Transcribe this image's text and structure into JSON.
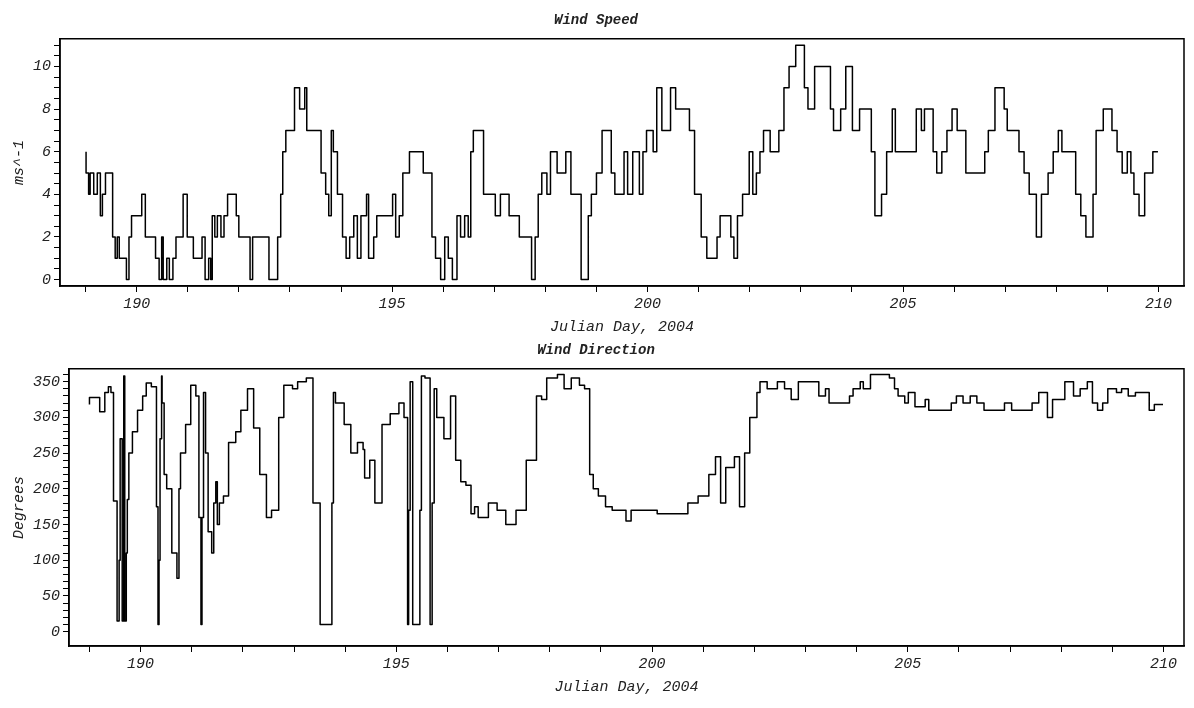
{
  "chart_data": [
    {
      "type": "step",
      "title": "Wind Speed",
      "xlabel": "Julian Day, 2004",
      "ylabel": "ms^-1",
      "xlim": [
        188.5,
        210.5
      ],
      "ylim": [
        -0.3,
        11.3
      ],
      "xticks": [
        {
          "value": 189,
          "label": null
        },
        190,
        {
          "value": 191,
          "label": null
        },
        {
          "value": 192,
          "label": null
        },
        {
          "value": 193,
          "label": null
        },
        {
          "value": 194,
          "label": null
        },
        195,
        {
          "value": 196,
          "label": null
        },
        {
          "value": 197,
          "label": null
        },
        {
          "value": 198,
          "label": null
        },
        {
          "value": 199,
          "label": null
        },
        200,
        {
          "value": 201,
          "label": null
        },
        {
          "value": 202,
          "label": null
        },
        {
          "value": 203,
          "label": null
        },
        {
          "value": 204,
          "label": null
        },
        205,
        {
          "value": 206,
          "label": null
        },
        {
          "value": 207,
          "label": null
        },
        {
          "value": 208,
          "label": null
        },
        {
          "value": 209,
          "label": null
        },
        210
      ],
      "yticks": [
        0,
        {
          "value": 0.5,
          "label": null
        },
        {
          "value": 1,
          "label": null
        },
        {
          "value": 1.5,
          "label": null
        },
        2,
        {
          "value": 2.5,
          "label": null
        },
        {
          "value": 3,
          "label": null
        },
        {
          "value": 3.5,
          "label": null
        },
        4,
        {
          "value": 4.5,
          "label": null
        },
        {
          "value": 5,
          "label": null
        },
        {
          "value": 5.5,
          "label": null
        },
        6,
        {
          "value": 6.5,
          "label": null
        },
        {
          "value": 7,
          "label": null
        },
        {
          "value": 7.5,
          "label": null
        },
        8,
        {
          "value": 8.5,
          "label": null
        },
        {
          "value": 9,
          "label": null
        },
        {
          "value": 9.5,
          "label": null
        },
        10,
        {
          "value": 10.5,
          "label": null
        },
        {
          "value": 11,
          "label": null
        }
      ],
      "marker": "none",
      "series": [
        {
          "color": "#000000",
          "x": [
            189.01,
            189.06,
            189.09,
            189.16,
            189.23,
            189.29,
            189.33,
            189.39,
            189.53,
            189.58,
            189.62,
            189.66,
            189.8,
            189.85,
            189.9,
            190.1,
            190.17,
            190.37,
            190.44,
            190.49,
            190.52,
            190.59,
            190.64,
            190.71,
            190.77,
            190.91,
            190.99,
            191.11,
            191.28,
            191.34,
            191.41,
            191.45,
            191.48,
            191.53,
            191.58,
            191.65,
            191.71,
            191.78,
            191.95,
            192.0,
            192.22,
            192.27,
            192.59,
            192.76,
            192.82,
            192.86,
            192.92,
            193.09,
            193.19,
            193.29,
            193.33,
            193.61,
            193.7,
            193.76,
            193.81,
            193.85,
            193.93,
            194.03,
            194.1,
            194.17,
            194.25,
            194.32,
            194.39,
            194.5,
            194.54,
            194.64,
            194.7,
            195.01,
            195.07,
            195.14,
            195.21,
            195.34,
            195.61,
            195.78,
            195.85,
            195.95,
            196.03,
            196.1,
            196.18,
            196.27,
            196.34,
            196.42,
            196.49,
            196.54,
            196.59,
            196.79,
            197.02,
            197.12,
            197.29,
            197.49,
            197.73,
            197.8,
            197.86,
            197.93,
            198.03,
            198.1,
            198.23,
            198.4,
            198.5,
            198.7,
            198.84,
            198.9,
            199.0,
            199.11,
            199.29,
            199.36,
            199.54,
            199.61,
            199.71,
            199.84,
            199.91,
            199.98,
            200.11,
            200.18,
            200.28,
            200.45,
            200.55,
            200.82,
            200.92,
            201.05,
            201.16,
            201.36,
            201.42,
            201.63,
            201.69,
            201.76,
            201.86,
            201.99,
            202.06,
            202.13,
            202.2,
            202.27,
            202.4,
            202.57,
            202.67,
            202.77,
            202.9,
            203.07,
            203.14,
            203.27,
            203.58,
            203.64,
            203.78,
            203.88,
            204.01,
            204.15,
            204.38,
            204.45,
            204.58,
            204.68,
            204.79,
            204.85,
            205.26,
            205.36,
            205.42,
            205.59,
            205.66,
            205.76,
            205.86,
            205.96,
            206.06,
            206.23,
            206.6,
            206.67,
            206.8,
            206.98,
            207.04,
            207.27,
            207.37,
            207.47,
            207.61,
            207.71,
            207.84,
            207.94,
            208.04,
            208.11,
            208.38,
            208.48,
            208.58,
            208.72,
            208.78,
            208.92,
            209.09,
            209.19,
            209.29,
            209.39,
            209.46,
            209.52,
            209.62,
            209.73,
            209.89,
            209.99
          ],
          "values": [
            6,
            5,
            4,
            5,
            4,
            5,
            3,
            4,
            5,
            2,
            1,
            2,
            1,
            0,
            2,
            3,
            4,
            2,
            1,
            0,
            2,
            0,
            1,
            0,
            1,
            2,
            4,
            2,
            1,
            2,
            0,
            1,
            0,
            3,
            2,
            3,
            2,
            3,
            4,
            3,
            2,
            0,
            2,
            0,
            2,
            4,
            6,
            7,
            9,
            8,
            9,
            7,
            5,
            4,
            3,
            7,
            6,
            4,
            2,
            1,
            2,
            3,
            1,
            3,
            4,
            1,
            2,
            3,
            4,
            2,
            3,
            5,
            6,
            5,
            2,
            1,
            0,
            2,
            1,
            0,
            3,
            2,
            3,
            2,
            6,
            7,
            4,
            3,
            4,
            3,
            2,
            0,
            2,
            4,
            5,
            4,
            6,
            5,
            6,
            4,
            0,
            3,
            4,
            5,
            7,
            5,
            4,
            6,
            4,
            6,
            4,
            6,
            7,
            6,
            9,
            7,
            9,
            8,
            7,
            4,
            2,
            1,
            2,
            3,
            2,
            1,
            3,
            4,
            6,
            4,
            5,
            6,
            7,
            6,
            7,
            9,
            10,
            11,
            9,
            8,
            10,
            8,
            7,
            8,
            10,
            7,
            8,
            6,
            3,
            4,
            6,
            8,
            6,
            8,
            7,
            8,
            6,
            5,
            6,
            7,
            8,
            7,
            5,
            6,
            7,
            9,
            8,
            7,
            6,
            5,
            4,
            2,
            4,
            5,
            6,
            7,
            6,
            4,
            3,
            2,
            4,
            7,
            8,
            7,
            6,
            5,
            6,
            5,
            4,
            3,
            5,
            6
          ]
        }
      ]
    },
    {
      "type": "step",
      "title": "Wind Direction",
      "xlabel": "Julian Day, 2004",
      "ylabel": "Degrees",
      "xlim": [
        188.6,
        210.4
      ],
      "ylim": [
        -20,
        368
      ],
      "xticks": [
        {
          "value": 189,
          "label": null
        },
        190,
        {
          "value": 191,
          "label": null
        },
        {
          "value": 192,
          "label": null
        },
        {
          "value": 193,
          "label": null
        },
        {
          "value": 194,
          "label": null
        },
        195,
        {
          "value": 196,
          "label": null
        },
        {
          "value": 197,
          "label": null
        },
        {
          "value": 198,
          "label": null
        },
        {
          "value": 199,
          "label": null
        },
        200,
        {
          "value": 201,
          "label": null
        },
        {
          "value": 202,
          "label": null
        },
        {
          "value": 203,
          "label": null
        },
        {
          "value": 204,
          "label": null
        },
        205,
        {
          "value": 206,
          "label": null
        },
        {
          "value": 207,
          "label": null
        },
        {
          "value": 208,
          "label": null
        },
        {
          "value": 209,
          "label": null
        },
        210
      ],
      "yticks": [
        0,
        {
          "value": 10,
          "label": null
        },
        {
          "value": 20,
          "label": null
        },
        {
          "value": 30,
          "label": null
        },
        {
          "value": 40,
          "label": null
        },
        50,
        {
          "value": 60,
          "label": null
        },
        {
          "value": 70,
          "label": null
        },
        {
          "value": 80,
          "label": null
        },
        {
          "value": 90,
          "label": null
        },
        100,
        {
          "value": 110,
          "label": null
        },
        {
          "value": 120,
          "label": null
        },
        {
          "value": 130,
          "label": null
        },
        {
          "value": 140,
          "label": null
        },
        150,
        {
          "value": 160,
          "label": null
        },
        {
          "value": 170,
          "label": null
        },
        {
          "value": 180,
          "label": null
        },
        {
          "value": 190,
          "label": null
        },
        200,
        {
          "value": 210,
          "label": null
        },
        {
          "value": 220,
          "label": null
        },
        {
          "value": 230,
          "label": null
        },
        {
          "value": 240,
          "label": null
        },
        250,
        {
          "value": 260,
          "label": null
        },
        {
          "value": 270,
          "label": null
        },
        {
          "value": 280,
          "label": null
        },
        {
          "value": 290,
          "label": null
        },
        300,
        {
          "value": 310,
          "label": null
        },
        {
          "value": 320,
          "label": null
        },
        {
          "value": 330,
          "label": null
        },
        {
          "value": 340,
          "label": null
        },
        350,
        {
          "value": 360,
          "label": null
        }
      ],
      "marker": "none",
      "series": [
        {
          "color": "#000000",
          "x": [
            189.0,
            189.2,
            189.3,
            189.37,
            189.42,
            189.47,
            189.54,
            189.58,
            189.6,
            189.64,
            189.67,
            189.69,
            189.72,
            189.74,
            189.77,
            189.84,
            189.94,
            190.04,
            190.11,
            190.21,
            190.31,
            190.34,
            190.36,
            190.38,
            190.41,
            190.42,
            190.46,
            190.51,
            190.61,
            190.71,
            190.75,
            190.78,
            190.88,
            190.98,
            191.08,
            191.14,
            191.18,
            191.2,
            191.23,
            191.27,
            191.32,
            191.39,
            191.43,
            191.47,
            191.5,
            191.54,
            191.62,
            191.72,
            191.86,
            191.96,
            192.09,
            192.21,
            192.33,
            192.46,
            192.56,
            192.7,
            192.8,
            192.97,
            193.07,
            193.24,
            193.37,
            193.51,
            193.54,
            193.74,
            193.77,
            193.81,
            193.98,
            194.11,
            194.24,
            194.35,
            194.38,
            194.48,
            194.58,
            194.72,
            194.88,
            195.05,
            195.15,
            195.22,
            195.24,
            195.27,
            195.32,
            195.46,
            195.49,
            195.56,
            195.66,
            195.7,
            195.74,
            195.79,
            195.93,
            196.06,
            196.16,
            196.26,
            196.36,
            196.46,
            196.53,
            196.6,
            196.8,
            196.97,
            197.14,
            197.34,
            197.54,
            197.74,
            197.84,
            197.94,
            198.15,
            198.28,
            198.42,
            198.58,
            198.68,
            198.78,
            198.85,
            198.95,
            199.09,
            199.22,
            199.49,
            199.59,
            199.76,
            200.1,
            200.43,
            200.7,
            200.9,
            201.11,
            201.24,
            201.34,
            201.44,
            201.61,
            201.71,
            201.81,
            201.91,
            202.05,
            202.11,
            202.25,
            202.45,
            202.59,
            202.72,
            202.86,
            203.26,
            203.39,
            203.46,
            203.86,
            203.93,
            204.07,
            204.13,
            204.27,
            204.64,
            204.74,
            204.81,
            204.94,
            205.01,
            205.14,
            205.34,
            205.41,
            205.85,
            205.95,
            206.08,
            206.22,
            206.35,
            206.49,
            206.89,
            207.03,
            207.43,
            207.56,
            207.73,
            207.83,
            208.07,
            208.24,
            208.37,
            208.51,
            208.61,
            208.71,
            208.81,
            208.91,
            209.08,
            209.18,
            209.31,
            209.45,
            209.72,
            209.82,
            209.99
          ],
          "values": [
            318,
            328,
            308,
            335,
            343,
            335,
            183,
            15,
            100,
            270,
            15,
            358,
            15,
            110,
            185,
            250,
            280,
            310,
            330,
            348,
            343,
            175,
            10,
            100,
            270,
            358,
            320,
            220,
            200,
            110,
            75,
            200,
            250,
            290,
            345,
            330,
            160,
            10,
            160,
            335,
            250,
            140,
            110,
            180,
            210,
            150,
            180,
            190,
            265,
            280,
            310,
            340,
            285,
            220,
            160,
            170,
            300,
            345,
            340,
            350,
            355,
            180,
            10,
            10,
            180,
            335,
            320,
            290,
            250,
            265,
            255,
            215,
            240,
            180,
            290,
            305,
            320,
            300,
            10,
            170,
            350,
            10,
            170,
            358,
            355,
            10,
            180,
            340,
            300,
            270,
            330,
            240,
            210,
            205,
            165,
            175,
            160,
            180,
            170,
            150,
            170,
            240,
            330,
            325,
            355,
            360,
            340,
            355,
            345,
            340,
            220,
            200,
            190,
            175,
            170,
            155,
            170,
            170,
            165,
            165,
            180,
            190,
            220,
            245,
            180,
            230,
            245,
            175,
            250,
            300,
            335,
            350,
            340,
            350,
            340,
            325,
            350,
            330,
            340,
            320,
            330,
            340,
            350,
            340,
            360,
            355,
            340,
            330,
            320,
            335,
            315,
            325,
            310,
            320,
            330,
            320,
            330,
            320,
            310,
            320,
            310,
            320,
            335,
            300,
            325,
            350,
            330,
            340,
            350,
            320,
            310,
            320,
            340,
            335,
            340,
            330,
            335,
            310,
            318
          ]
        }
      ]
    }
  ]
}
